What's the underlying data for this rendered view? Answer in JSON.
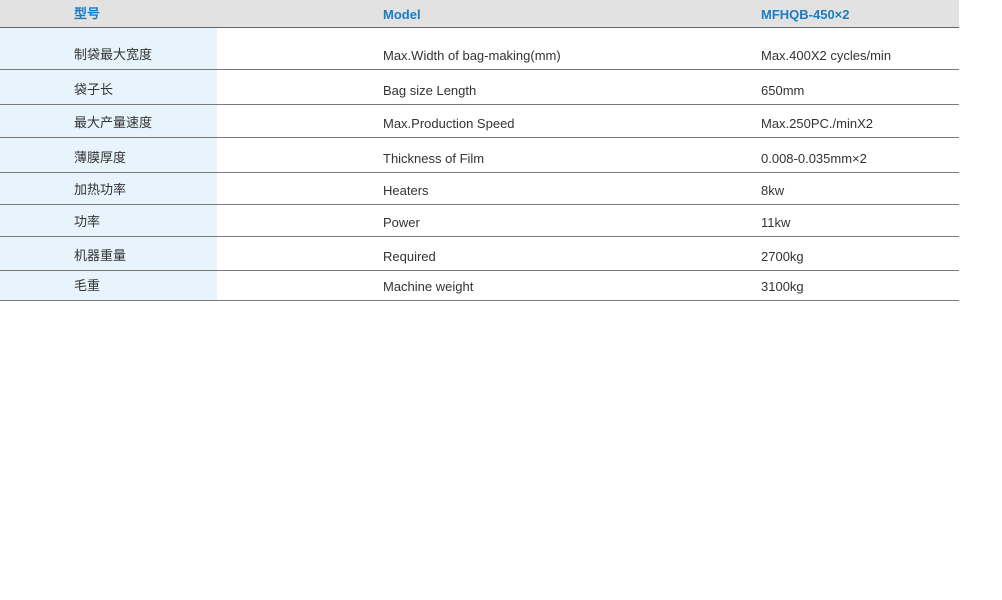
{
  "header": {
    "zh": "型号",
    "en": "Model",
    "value": "MFHQB-450×2"
  },
  "rows": [
    {
      "zh": "制袋最大宽度",
      "en": "Max.Width of bag-making(mm)",
      "value": "Max.400X2 cycles/min"
    },
    {
      "zh": "袋子长",
      "en": "Bag size Length",
      "value": "650mm"
    },
    {
      "zh": "最大产量速度",
      "en": "Max.Production Speed",
      "value": "Max.250PC./minX2"
    },
    {
      "zh": "薄膜厚度",
      "en": "Thickness of Film",
      "value": "0.008-0.035mm×2"
    },
    {
      "zh": "加热功率",
      "en": "Heaters",
      "value": "8kw"
    },
    {
      "zh": "功率",
      "en": "Power",
      "value": "11kw"
    },
    {
      "zh": "机器重量",
      "en": "Required",
      "value": "2700kg"
    },
    {
      "zh": "毛重",
      "en": "Machine weight",
      "value": "3100kg"
    }
  ],
  "colors": {
    "header_text": "#1b7dc3",
    "header_bg": "#e2e2e2",
    "first_col_bg": "#e7f4fc"
  }
}
